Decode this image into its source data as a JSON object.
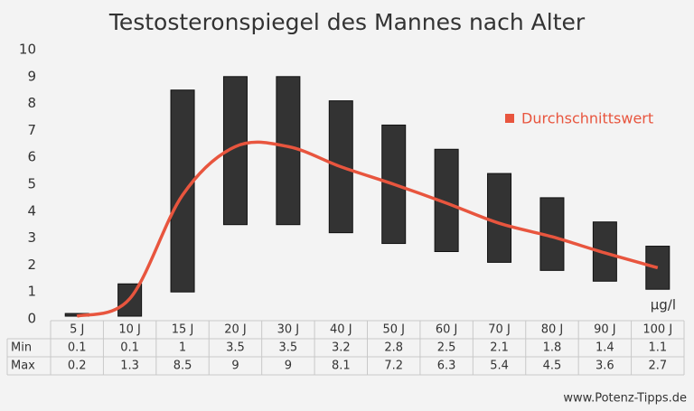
{
  "chart_data": {
    "type": "range-bar",
    "title": "Testosteronspiegel des Mannes nach Alter",
    "categories": [
      "5 J",
      "10 J",
      "15 J",
      "20 J",
      "30 J",
      "40 J",
      "50 J",
      "60 J",
      "70 J",
      "80 J",
      "90 J",
      "100 J"
    ],
    "series": [
      {
        "name": "Min",
        "values": [
          0.1,
          0.1,
          1,
          3.5,
          3.5,
          3.2,
          2.8,
          2.5,
          2.1,
          1.8,
          1.4,
          1.1
        ]
      },
      {
        "name": "Max",
        "values": [
          0.2,
          1.3,
          8.5,
          9,
          9,
          8.1,
          7.2,
          6.3,
          5.4,
          4.5,
          3.6,
          2.7
        ]
      },
      {
        "name": "Durchschnittswert",
        "color": "#e8553e",
        "values": [
          0.1,
          0.75,
          4.6,
          6.4,
          6.4,
          5.65,
          5.0,
          4.3,
          3.55,
          3.05,
          2.45,
          1.9
        ]
      }
    ],
    "bar_color": "#333333",
    "unit": "µg/l",
    "ylim": [
      0,
      10
    ],
    "yticks": [
      0,
      1,
      2,
      3,
      4,
      5,
      6,
      7,
      8,
      9,
      10
    ],
    "legend": "upper right",
    "source": "www.Potenz-Tipps.de"
  }
}
